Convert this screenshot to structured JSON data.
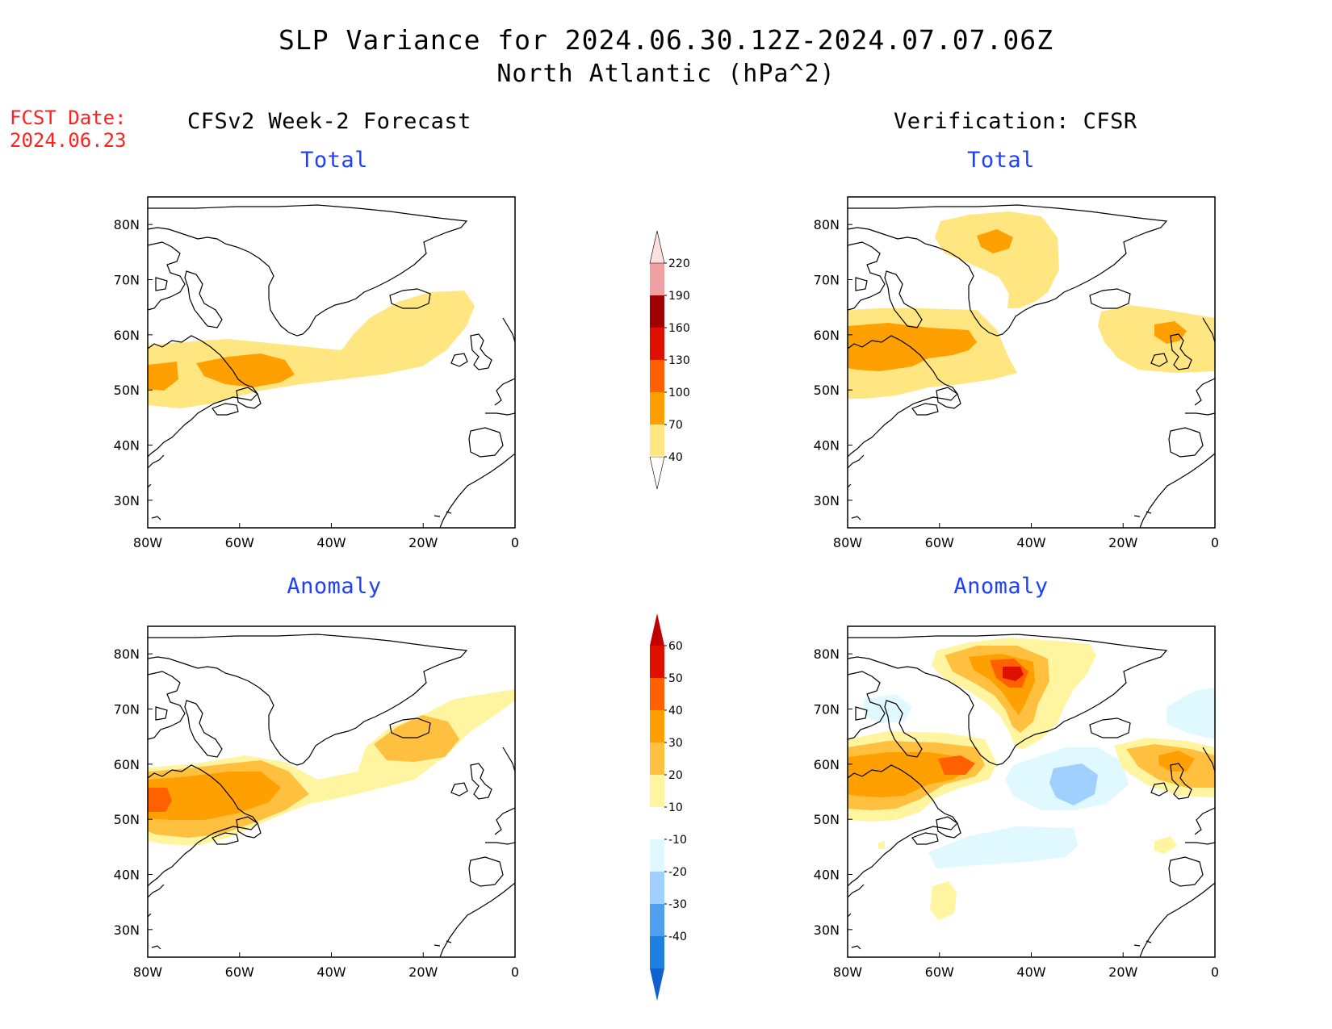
{
  "title": {
    "line1": "SLP Variance for 2024.06.30.12Z-2024.07.07.06Z",
    "line2": "North Atlantic (hPa^2)"
  },
  "forecast_date": {
    "label": "FCST Date:",
    "value": "2024.06.23"
  },
  "columns": {
    "left": "CFSv2 Week-2 Forecast",
    "right": "Verification: CFSR"
  },
  "panels": {
    "top_left": "Total",
    "top_right": "Total",
    "bottom_left": "Anomaly",
    "bottom_right": "Anomaly"
  },
  "axes": {
    "lon_labels": [
      "80W",
      "60W",
      "40W",
      "20W",
      "0"
    ],
    "lat_labels": [
      "80N",
      "70N",
      "60N",
      "50N",
      "40N",
      "30N"
    ]
  },
  "colorbars": {
    "total": {
      "levels": [
        "40",
        "70",
        "100",
        "130",
        "160",
        "190",
        "220"
      ],
      "colors": [
        "#ffe680",
        "#ffa000",
        "#ff6000",
        "#e01000",
        "#a00000",
        "#f0a0a0",
        "#ffe0e0"
      ]
    },
    "anomaly": {
      "levels": [
        "60",
        "50",
        "40",
        "30",
        "20",
        "10",
        "-10",
        "-20",
        "-30",
        "-40"
      ],
      "colors": [
        "#c00000",
        "#e01000",
        "#ff6000",
        "#ffa000",
        "#ffc040",
        "#fff5a0",
        "#ffffff",
        "#e0f8ff",
        "#a0d0ff",
        "#50a0f0",
        "#2080e0",
        "#1060d0"
      ]
    }
  },
  "colors": {
    "fcst_date": "#ff2020",
    "subtitle": "#1f3fff"
  }
}
